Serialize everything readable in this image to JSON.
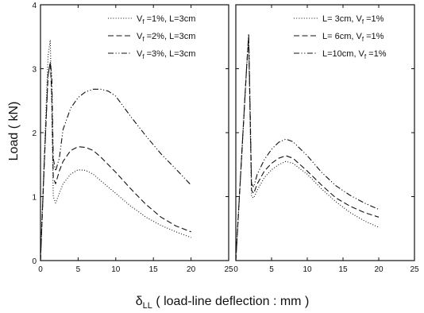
{
  "chart_data": [
    {
      "type": "line",
      "title": "",
      "xlabel": "",
      "ylabel": "Load ( kN)",
      "xlim": [
        0,
        25
      ],
      "ylim": [
        0,
        4
      ],
      "x_ticks": [
        "0",
        "5",
        "10",
        "15",
        "20",
        "25"
      ],
      "y_ticks": [
        "0",
        "1",
        "2",
        "3",
        "4"
      ],
      "legend_position": "top-right",
      "series": [
        {
          "name": "Vf =1%, L=3cm",
          "sub": "f",
          "line_style": "dotted",
          "x": [
            0,
            0.5,
            1.0,
            1.3,
            1.5,
            1.7,
            2.0,
            2.5,
            3,
            4,
            5,
            6,
            7,
            8,
            10,
            12,
            14,
            16,
            18,
            20
          ],
          "y": [
            0,
            1.6,
            3.2,
            3.45,
            2.4,
            1.0,
            0.9,
            1.05,
            1.2,
            1.35,
            1.42,
            1.41,
            1.35,
            1.25,
            1.05,
            0.85,
            0.68,
            0.55,
            0.45,
            0.36
          ]
        },
        {
          "name": "Vf =2%, L=3cm",
          "sub": "f",
          "line_style": "dashed",
          "x": [
            0,
            0.5,
            1.0,
            1.3,
            1.5,
            1.7,
            2.0,
            2.5,
            3,
            4,
            5,
            6,
            7,
            8,
            10,
            12,
            14,
            16,
            18,
            20
          ],
          "y": [
            0,
            1.5,
            2.9,
            3.1,
            2.6,
            1.3,
            1.2,
            1.4,
            1.55,
            1.72,
            1.78,
            1.77,
            1.72,
            1.62,
            1.38,
            1.12,
            0.88,
            0.68,
            0.54,
            0.45
          ]
        },
        {
          "name": "Vf =3%, L=3cm",
          "sub": "f",
          "line_style": "dash-dot-dot",
          "x": [
            0,
            0.5,
            1.0,
            1.3,
            1.5,
            1.7,
            2.0,
            2.5,
            3,
            4,
            5,
            6,
            7,
            8,
            9,
            10,
            12,
            14,
            16,
            18,
            20
          ],
          "y": [
            0,
            1.5,
            2.9,
            3.1,
            2.9,
            1.6,
            1.4,
            1.6,
            2.05,
            2.38,
            2.55,
            2.64,
            2.68,
            2.68,
            2.65,
            2.57,
            2.25,
            1.95,
            1.67,
            1.43,
            1.18
          ]
        }
      ]
    },
    {
      "type": "line",
      "title": "",
      "xlabel": "",
      "ylabel": "",
      "xlim": [
        0,
        25
      ],
      "ylim": [
        0,
        4
      ],
      "x_ticks": [
        "0",
        "5",
        "10",
        "15",
        "20",
        "25"
      ],
      "legend_position": "top-right",
      "series": [
        {
          "name": "L= 3cm, Vf =1%",
          "sub": "f",
          "line_style": "dotted",
          "x": [
            0,
            0.8,
            1.5,
            1.8,
            2.0,
            2.2,
            2.5,
            3,
            4,
            5,
            6,
            7,
            8,
            10,
            12,
            14,
            16,
            18,
            20
          ],
          "y": [
            0,
            1.6,
            3.0,
            3.45,
            2.2,
            1.0,
            0.98,
            1.1,
            1.3,
            1.42,
            1.5,
            1.55,
            1.52,
            1.35,
            1.12,
            0.92,
            0.75,
            0.62,
            0.52
          ]
        },
        {
          "name": "L= 6cm, Vf =1%",
          "sub": "f",
          "line_style": "dashed",
          "x": [
            0,
            0.8,
            1.5,
            1.8,
            2.0,
            2.2,
            2.5,
            3,
            4,
            5,
            6,
            7,
            8,
            10,
            12,
            14,
            16,
            18,
            20
          ],
          "y": [
            0,
            1.6,
            3.0,
            3.5,
            2.3,
            1.1,
            1.05,
            1.2,
            1.4,
            1.52,
            1.6,
            1.64,
            1.6,
            1.4,
            1.18,
            0.98,
            0.85,
            0.75,
            0.68
          ]
        },
        {
          "name": "L=10cm, Vf =1%",
          "sub": "f",
          "line_style": "dash-dot-dot",
          "x": [
            0,
            0.8,
            1.5,
            1.8,
            2.0,
            2.2,
            2.5,
            3,
            4,
            5,
            6,
            7,
            8,
            10,
            12,
            14,
            16,
            18,
            20
          ],
          "y": [
            0,
            1.6,
            3.0,
            3.55,
            2.4,
            1.2,
            1.15,
            1.35,
            1.58,
            1.74,
            1.85,
            1.9,
            1.86,
            1.64,
            1.38,
            1.17,
            1.02,
            0.9,
            0.8
          ]
        }
      ]
    }
  ],
  "figure": {
    "ylabel": "Load ( kN)",
    "xlabel_symbol": "δ",
    "xlabel_sub": "LL",
    "xlabel_rest": " ( load-line deflection : mm )"
  }
}
